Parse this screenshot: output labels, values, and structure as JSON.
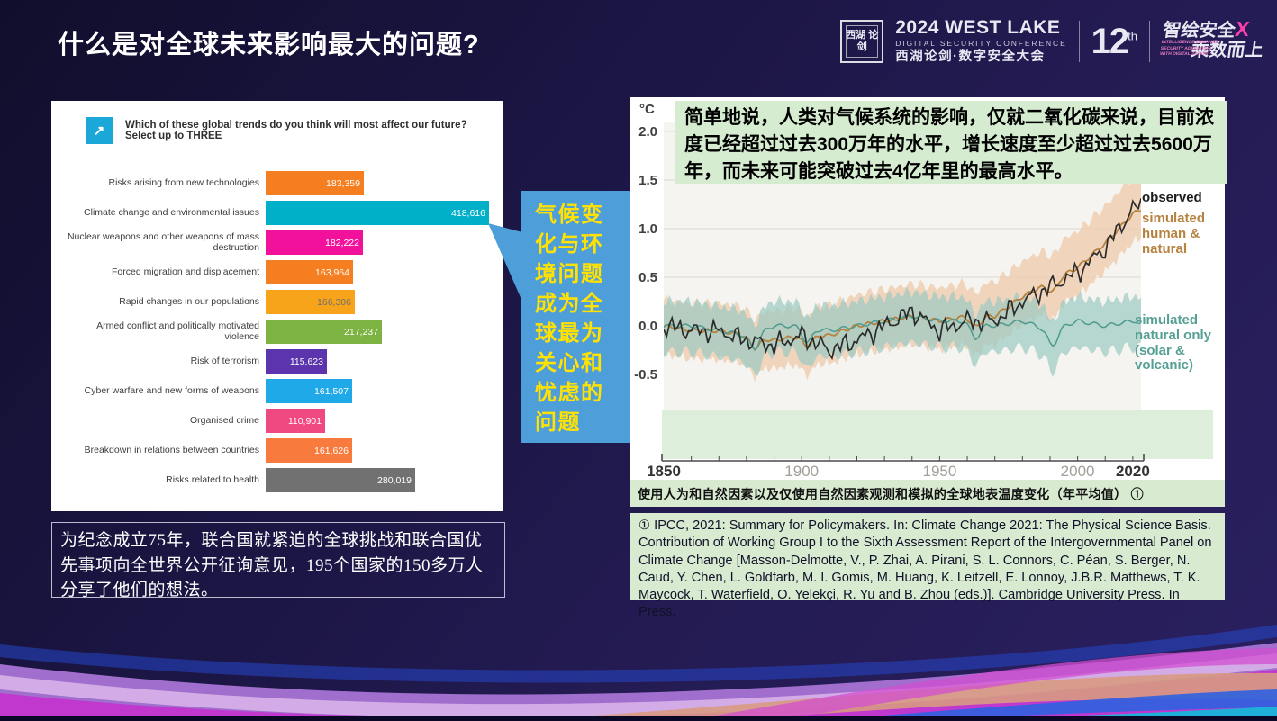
{
  "slide": {
    "title": "什么是对全球未来影响最大的问题?"
  },
  "header_logos": {
    "seal_text": "西湖 论剑",
    "conference_line1": "2024 WEST LAKE",
    "conference_line2": "DIGITAL SECURITY CONFERENCE",
    "conference_line3": "西湖论剑·数字安全大会",
    "edition_number": "12",
    "edition_suffix": "th",
    "slogan_line1": "智绘安全",
    "slogan_x": "X",
    "slogan_line2": "乘数而上",
    "slogan_small": "INTELLIGENCE ENHANCE SECURITY ADVANCING WITH DIGITALIZATION"
  },
  "survey": {
    "question": "Which of these global trends do you think will most affect our future? Select up to THREE",
    "icon": "trend-arrow-icon"
  },
  "callout": {
    "text": "气候变化与环境问题成为全球最为关心和忧虑的问题",
    "box_color": "#4e9ed9",
    "text_color": "#ffe103"
  },
  "un75_note": "为纪念成立75年，联合国就紧迫的全球挑战和联合国优先事项向全世界公开征询意见，195个国家的150多万人分享了他们的想法。",
  "climate": {
    "annotation": "简单地说，人类对气候系统的影响，仅就二氧化碳来说，目前浓度已经超过过去300万年的水平，增长速度至少超过过去5600万年，而未来可能突破过去4亿年里的最高水平。",
    "unit": "°C",
    "legend": {
      "observed": "observed",
      "human_natural": "simulated human & natural",
      "natural_only": "simulated natural only (solar & volcanic)"
    },
    "caption": "使用人为和自然因素以及仅使用自然因素观测和模拟的全球地表温度变化（年平均值） ①",
    "citation": "① IPCC, 2021: Summary for Policymakers. In: Climate Change 2021: The Physical Science Basis. Contribution of Working Group I to the Sixth Assessment Report of the Intergovernmental Panel on Climate Change [Masson-Delmotte, V., P. Zhai, A. Pirani, S. L. Connors, C. Péan, S. Berger, N. Caud, Y. Chen, L. Goldfarb, M. I. Gomis, M. Huang, K. Leitzell, E. Lonnoy, J.B.R. Matthews, T. K. Maycock, T. Waterfield, O. Yelekçi, R. Yu and B. Zhou (eds.)]. Cambridge University Press. In Press."
  },
  "chart_data": [
    {
      "type": "bar",
      "orientation": "horizontal",
      "title": "Which of these global trends do you think will most affect our future? Select up to THREE",
      "categories": [
        "Risks arising from new technologies",
        "Climate change and environmental issues",
        "Nuclear weapons and other weapons of mass destruction",
        "Forced migration and displacement",
        "Rapid changes in our populations",
        "Armed conflict and politically motivated violence",
        "Risk of terrorism",
        "Cyber warfare and new forms of weapons",
        "Organised crime",
        "Breakdown in relations between countries",
        "Risks related to health"
      ],
      "values": [
        183359,
        418616,
        182222,
        163964,
        166306,
        217237,
        115623,
        161507,
        110901,
        161626,
        280019
      ],
      "value_labels": [
        "183,359",
        "418,616",
        "182,222",
        "163,964",
        "166,306",
        "217,237",
        "115,623",
        "161,507",
        "110,901",
        "161,626",
        "280,019"
      ],
      "colors": [
        "#F57E20",
        "#00AFC8",
        "#F2119B",
        "#F57E20",
        "#F8A41B",
        "#7CB342",
        "#5C35AE",
        "#1FA9E8",
        "#F04880",
        "#F97A3D",
        "#717171"
      ],
      "value_text_colors": [
        "#ffffff",
        "#ffffff",
        "#ffffff",
        "#ffffff",
        "#6f6f6f",
        "#ffffff",
        "#ffffff",
        "#ffffff",
        "#ffffff",
        "#ffffff",
        "#ffffff"
      ],
      "xlim": [
        0,
        450000
      ],
      "legend_position": "none"
    },
    {
      "type": "line",
      "title": "Global surface temperature change (annual average), observed and simulated",
      "ylabel": "°C",
      "ylim": [
        -0.85,
        2.0
      ],
      "xlim": [
        1850,
        2023
      ],
      "xticks": [
        "1850",
        "1900",
        "1950",
        "2000",
        "2020"
      ],
      "yticks": [
        "2.0",
        "1.5",
        "1.0",
        "0.5",
        "0.0",
        "-0.5"
      ],
      "grid": true,
      "legend_position": "right",
      "x": [
        1850,
        1860,
        1870,
        1880,
        1890,
        1900,
        1910,
        1920,
        1930,
        1940,
        1950,
        1960,
        1970,
        1980,
        1990,
        2000,
        2010,
        2020,
        2023
      ],
      "series": [
        {
          "name": "observed",
          "color": "#2b2b2b",
          "values": [
            0.0,
            -0.05,
            -0.05,
            -0.15,
            -0.2,
            -0.1,
            -0.25,
            -0.15,
            0.0,
            0.15,
            -0.05,
            0.05,
            0.05,
            0.25,
            0.4,
            0.55,
            0.8,
            1.2,
            1.25
          ]
        },
        {
          "name": "simulated human & natural",
          "color": "#b5823f",
          "values": [
            0.0,
            -0.05,
            -0.05,
            -0.1,
            -0.15,
            -0.1,
            -0.1,
            0.0,
            0.05,
            0.1,
            0.05,
            0.1,
            0.1,
            0.3,
            0.45,
            0.6,
            0.85,
            1.15,
            1.2
          ]
        },
        {
          "name": "simulated natural only (solar & volcanic)",
          "color": "#4d9a8f",
          "values": [
            0.0,
            0.0,
            -0.05,
            -0.1,
            0.0,
            0.0,
            -0.05,
            0.0,
            0.05,
            0.1,
            0.05,
            0.05,
            0.0,
            0.05,
            -0.05,
            0.05,
            0.0,
            0.05,
            0.05
          ]
        }
      ],
      "bands": [
        {
          "name": "simulated human & natural range",
          "color": "#efc9a8"
        },
        {
          "name": "simulated natural only range",
          "color": "#9ecbc4"
        }
      ]
    }
  ]
}
